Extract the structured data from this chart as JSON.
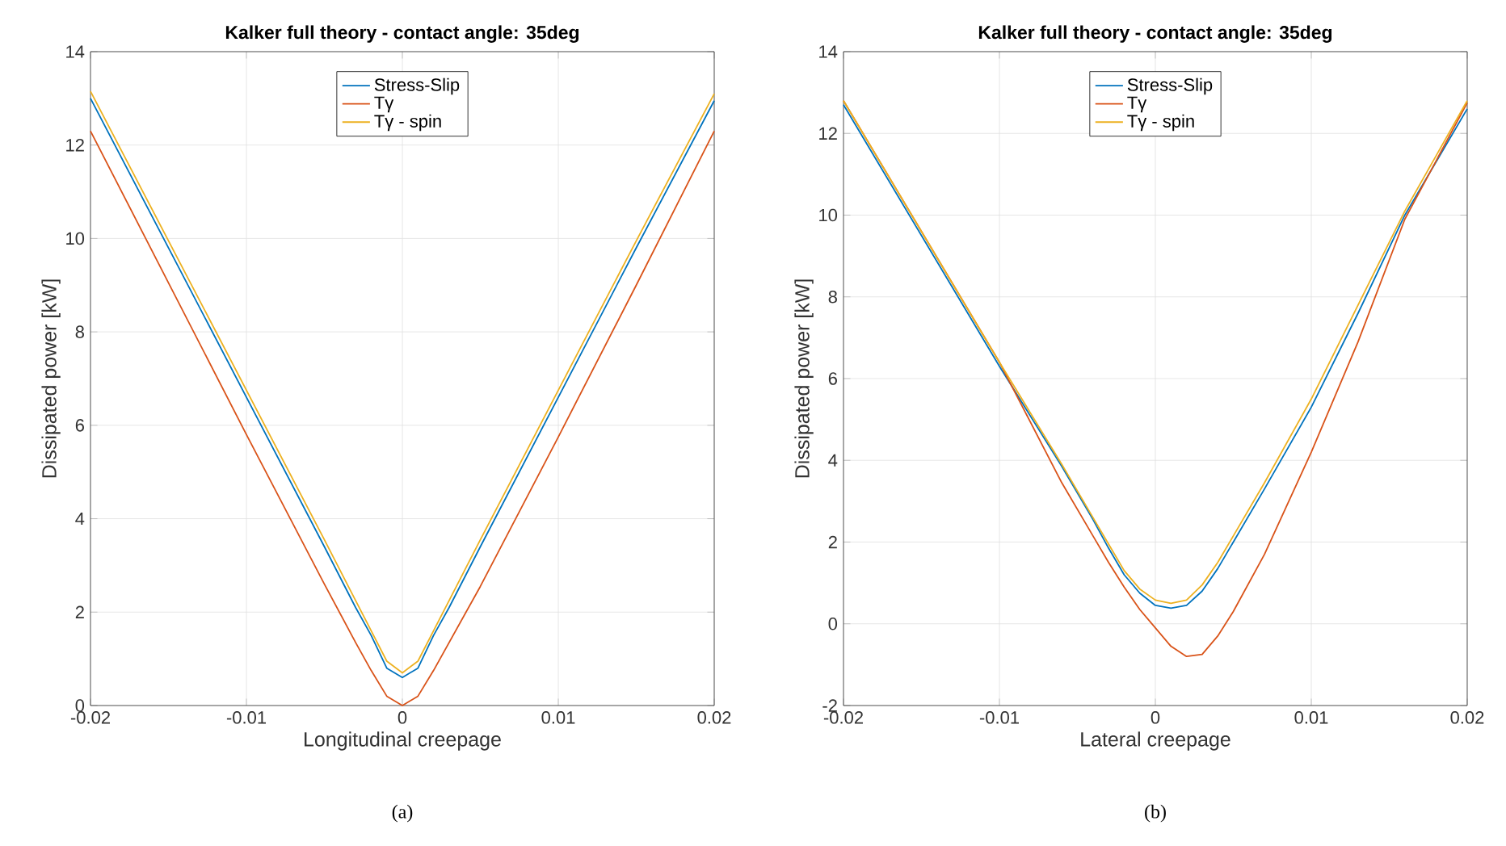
{
  "chart_data": [
    {
      "type": "line",
      "title": "Kalker full theory - contact angle: 35deg",
      "xlabel": "Longitudinal creepage",
      "ylabel": "Dissipated power [kW]",
      "annotations": [
        "(a)"
      ],
      "x": [
        -0.02,
        -0.015,
        -0.01,
        -0.005,
        -0.003,
        -0.002,
        -0.001,
        0,
        0.001,
        0.002,
        0.003,
        0.005,
        0.01,
        0.015,
        0.02
      ],
      "series": [
        {
          "name": "Stress-Slip",
          "color": "#0072bd",
          "values": [
            13.0,
            9.8,
            6.6,
            3.4,
            2.1,
            1.5,
            0.8,
            0.6,
            0.8,
            1.5,
            2.1,
            3.4,
            6.6,
            9.8,
            12.95
          ]
        },
        {
          "name": "Tγ",
          "color": "#d95319",
          "values": [
            12.3,
            9.05,
            5.8,
            2.6,
            1.35,
            0.75,
            0.2,
            0,
            0.2,
            0.75,
            1.35,
            2.55,
            5.75,
            9.0,
            12.3
          ]
        },
        {
          "name": "Tγ - spin",
          "color": "#edb120",
          "values": [
            13.15,
            9.95,
            6.75,
            3.55,
            2.25,
            1.6,
            0.95,
            0.7,
            0.95,
            1.6,
            2.25,
            3.55,
            6.75,
            9.95,
            13.1
          ]
        }
      ],
      "xlim": [
        -0.02,
        0.02
      ],
      "xticks": [
        -0.02,
        -0.01,
        0,
        0.01,
        0.02
      ],
      "ylim": [
        0,
        14
      ],
      "yticks": [
        0,
        2,
        4,
        6,
        8,
        10,
        12,
        14
      ],
      "grid": true,
      "legend": "top",
      "line_style": "solid",
      "marker": "none"
    },
    {
      "type": "line",
      "title": "Kalker full theory - contact angle: 35deg",
      "xlabel": "Lateral creepage",
      "ylabel": "Dissipated power [kW]",
      "annotations": [
        "(b)"
      ],
      "x": [
        -0.02,
        -0.015,
        -0.01,
        -0.006,
        -0.004,
        -0.003,
        -0.002,
        -0.001,
        0,
        0.001,
        0.002,
        0.003,
        0.004,
        0.005,
        0.007,
        0.01,
        0.013,
        0.016,
        0.02
      ],
      "series": [
        {
          "name": "Stress-Slip",
          "color": "#0072bd",
          "values": [
            12.7,
            9.5,
            6.3,
            3.85,
            2.55,
            1.85,
            1.2,
            0.75,
            0.45,
            0.38,
            0.45,
            0.8,
            1.35,
            2.0,
            3.3,
            5.3,
            7.6,
            10.0,
            12.6
          ]
        },
        {
          "name": "Tγ",
          "color": "#d95319",
          "values": [
            12.8,
            9.6,
            6.4,
            3.45,
            2.15,
            1.5,
            0.9,
            0.35,
            -0.1,
            -0.55,
            -0.8,
            -0.75,
            -0.3,
            0.3,
            1.7,
            4.2,
            6.9,
            9.9,
            12.75
          ]
        },
        {
          "name": "Tγ - spin",
          "color": "#edb120",
          "values": [
            12.8,
            9.6,
            6.4,
            3.9,
            2.6,
            1.95,
            1.3,
            0.85,
            0.58,
            0.5,
            0.58,
            0.95,
            1.5,
            2.15,
            3.45,
            5.5,
            7.8,
            10.1,
            12.8
          ]
        }
      ],
      "xlim": [
        -0.02,
        0.02
      ],
      "xticks": [
        -0.02,
        -0.01,
        0,
        0.01,
        0.02
      ],
      "ylim": [
        -2,
        14
      ],
      "yticks": [
        -2,
        0,
        2,
        4,
        6,
        8,
        10,
        12,
        14
      ],
      "grid": true,
      "legend": "top",
      "line_style": "solid",
      "marker": "none"
    }
  ]
}
